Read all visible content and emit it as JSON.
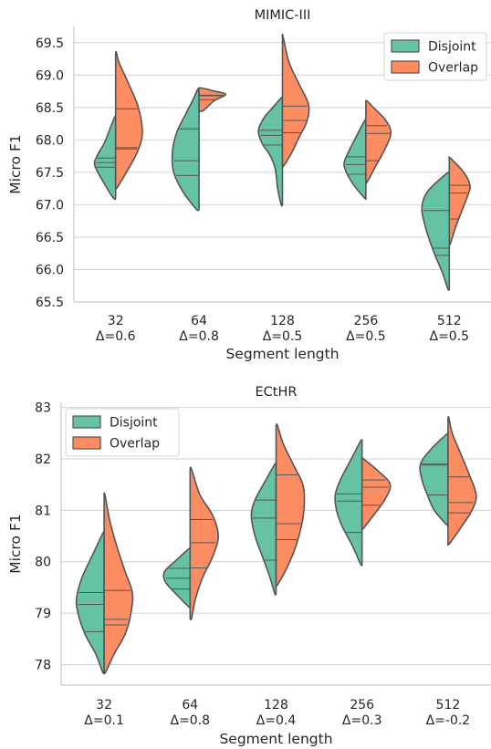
{
  "colors": {
    "disjoint": "#66c2a5",
    "overlap": "#fc8d62",
    "outline": "#555555"
  },
  "chart_data": [
    {
      "type": "violin",
      "title": "MIMIC-III",
      "xlabel": "Segment length",
      "ylabel": "Micro F1",
      "ylim": [
        65.5,
        69.75
      ],
      "yticks": [
        "65.5",
        "66.0",
        "66.5",
        "67.0",
        "67.5",
        "68.0",
        "68.5",
        "69.0",
        "69.5"
      ],
      "categories": [
        "32",
        "64",
        "128",
        "256",
        "512"
      ],
      "category_sublabels": [
        "Δ=0.6",
        "Δ=0.8",
        "Δ=0.5",
        "Δ=0.5",
        "Δ=0.5"
      ],
      "legend": {
        "placement": "top-right",
        "items": [
          "Disjoint",
          "Overlap"
        ]
      },
      "grid": true,
      "series": [
        {
          "name": "Disjoint",
          "violins": [
            {
              "min": 67.1,
              "max": 68.35,
              "w": 0.62,
              "shape": [
                [
                  67.1,
                  0.1
                ],
                [
                  67.3,
                  0.5
                ],
                [
                  67.6,
                  1.0
                ],
                [
                  67.75,
                  0.9
                ],
                [
                  67.95,
                  0.55
                ],
                [
                  68.15,
                  0.3
                ],
                [
                  68.35,
                  0.05
                ]
              ],
              "quartiles": [
                67.58,
                67.65,
                67.72
              ]
            },
            {
              "min": 66.93,
              "max": 68.78,
              "w": 0.8,
              "shape": [
                [
                  66.93,
                  0.1
                ],
                [
                  67.2,
                  0.6
                ],
                [
                  67.5,
                  0.95
                ],
                [
                  67.8,
                  1.0
                ],
                [
                  68.1,
                  0.85
                ],
                [
                  68.4,
                  0.5
                ],
                [
                  68.6,
                  0.25
                ],
                [
                  68.78,
                  0.05
                ]
              ],
              "quartiles": [
                67.45,
                67.68,
                68.17
              ]
            },
            {
              "min": 67.0,
              "max": 68.65,
              "w": 0.72,
              "shape": [
                [
                  67.0,
                  0.05
                ],
                [
                  67.25,
                  0.2
                ],
                [
                  67.55,
                  0.3
                ],
                [
                  67.75,
                  0.5
                ],
                [
                  67.95,
                  0.85
                ],
                [
                  68.15,
                  1.0
                ],
                [
                  68.35,
                  0.75
                ],
                [
                  68.5,
                  0.4
                ],
                [
                  68.65,
                  0.05
                ]
              ],
              "quartiles": [
                67.92,
                68.07,
                68.15
              ]
            },
            {
              "min": 67.1,
              "max": 68.3,
              "w": 0.65,
              "shape": [
                [
                  67.1,
                  0.05
                ],
                [
                  67.3,
                  0.55
                ],
                [
                  67.5,
                  0.9
                ],
                [
                  67.65,
                  1.0
                ],
                [
                  67.85,
                  0.75
                ],
                [
                  68.05,
                  0.45
                ],
                [
                  68.3,
                  0.05
                ]
              ],
              "quartiles": [
                67.47,
                67.62,
                67.74
              ]
            },
            {
              "min": 65.7,
              "max": 67.48,
              "w": 0.82,
              "shape": [
                [
                  65.7,
                  0.05
                ],
                [
                  65.95,
                  0.25
                ],
                [
                  66.2,
                  0.5
                ],
                [
                  66.45,
                  0.72
                ],
                [
                  66.7,
                  0.9
                ],
                [
                  66.95,
                  1.0
                ],
                [
                  67.2,
                  0.8
                ],
                [
                  67.48,
                  0.1
                ]
              ],
              "quartiles": [
                66.22,
                66.33,
                66.91
              ]
            }
          ]
        },
        {
          "name": "Overlap",
          "violins": [
            {
              "min": 67.26,
              "max": 69.35,
              "w": 0.8,
              "shape": [
                [
                  67.26,
                  0.05
                ],
                [
                  67.5,
                  0.4
                ],
                [
                  67.8,
                  0.8
                ],
                [
                  68.1,
                  1.0
                ],
                [
                  68.5,
                  0.85
                ],
                [
                  68.9,
                  0.45
                ],
                [
                  69.2,
                  0.12
                ],
                [
                  69.35,
                  0.03
                ]
              ],
              "quartiles": [
                67.86,
                67.88,
                68.48
              ]
            },
            {
              "min": 68.45,
              "max": 68.8,
              "w": 0.8,
              "shape": [
                [
                  68.45,
                  0.15
                ],
                [
                  68.6,
                  0.55
                ],
                [
                  68.7,
                  1.0
                ],
                [
                  68.75,
                  0.6
                ],
                [
                  68.8,
                  0.1
                ]
              ],
              "quartiles": [
                68.62,
                68.68,
                68.69
              ]
            },
            {
              "min": 67.6,
              "max": 69.6,
              "w": 0.78,
              "shape": [
                [
                  67.6,
                  0.05
                ],
                [
                  67.8,
                  0.35
                ],
                [
                  68.05,
                  0.65
                ],
                [
                  68.3,
                  0.95
                ],
                [
                  68.55,
                  1.0
                ],
                [
                  68.85,
                  0.65
                ],
                [
                  69.2,
                  0.25
                ],
                [
                  69.6,
                  0.02
                ]
              ],
              "quartiles": [
                68.11,
                68.3,
                68.52
              ]
            },
            {
              "min": 67.35,
              "max": 68.6,
              "w": 0.75,
              "shape": [
                [
                  67.35,
                  0.05
                ],
                [
                  67.6,
                  0.4
                ],
                [
                  67.85,
                  0.75
                ],
                [
                  68.1,
                  1.0
                ],
                [
                  68.3,
                  0.8
                ],
                [
                  68.5,
                  0.3
                ],
                [
                  68.6,
                  0.05
                ]
              ],
              "quartiles": [
                67.68,
                68.1,
                68.22
              ]
            },
            {
              "min": 66.4,
              "max": 67.72,
              "w": 0.62,
              "shape": [
                [
                  66.4,
                  0.05
                ],
                [
                  66.65,
                  0.3
                ],
                [
                  66.9,
                  0.6
                ],
                [
                  67.15,
                  0.9
                ],
                [
                  67.3,
                  1.0
                ],
                [
                  67.5,
                  0.7
                ],
                [
                  67.72,
                  0.05
                ]
              ],
              "quartiles": [
                66.78,
                67.18,
                67.3
              ]
            }
          ]
        }
      ]
    },
    {
      "type": "violin",
      "title": "ECtHR",
      "xlabel": "Segment length",
      "ylabel": "Micro F1",
      "ylim": [
        77.6,
        83.1
      ],
      "yticks": [
        "78",
        "79",
        "80",
        "81",
        "82",
        "83"
      ],
      "categories": [
        "32",
        "64",
        "128",
        "256",
        "512"
      ],
      "category_sublabels": [
        "Δ=0.1",
        "Δ=0.8",
        "Δ=0.4",
        "Δ=0.3",
        "Δ=-0.2"
      ],
      "legend": {
        "placement": "top-left",
        "items": [
          "Disjoint",
          "Overlap"
        ]
      },
      "grid": true,
      "series": [
        {
          "name": "Disjoint",
          "violins": [
            {
              "min": 77.85,
              "max": 80.55,
              "w": 0.8,
              "shape": [
                [
                  77.85,
                  0.05
                ],
                [
                  78.2,
                  0.3
                ],
                [
                  78.6,
                  0.7
                ],
                [
                  79.0,
                  0.95
                ],
                [
                  79.3,
                  1.0
                ],
                [
                  79.7,
                  0.8
                ],
                [
                  80.1,
                  0.45
                ],
                [
                  80.55,
                  0.05
                ]
              ],
              "quartiles": [
                78.64,
                79.17,
                79.4
              ]
            },
            {
              "min": 79.12,
              "max": 80.25,
              "w": 0.75,
              "shape": [
                [
                  79.12,
                  0.05
                ],
                [
                  79.35,
                  0.5
                ],
                [
                  79.6,
                  0.95
                ],
                [
                  79.8,
                  1.0
                ],
                [
                  80.0,
                  0.6
                ],
                [
                  80.25,
                  0.05
                ]
              ],
              "quartiles": [
                79.47,
                79.68,
                79.87
              ]
            },
            {
              "min": 79.38,
              "max": 81.9,
              "w": 0.72,
              "shape": [
                [
                  79.38,
                  0.05
                ],
                [
                  79.7,
                  0.25
                ],
                [
                  80.1,
                  0.55
                ],
                [
                  80.5,
                  0.85
                ],
                [
                  80.9,
                  1.0
                ],
                [
                  81.2,
                  0.85
                ],
                [
                  81.6,
                  0.4
                ],
                [
                  81.9,
                  0.05
                ]
              ],
              "quartiles": [
                80.03,
                80.85,
                81.2
              ]
            },
            {
              "min": 79.95,
              "max": 82.35,
              "w": 0.78,
              "shape": [
                [
                  79.95,
                  0.05
                ],
                [
                  80.3,
                  0.35
                ],
                [
                  80.7,
                  0.75
                ],
                [
                  81.0,
                  0.95
                ],
                [
                  81.3,
                  1.0
                ],
                [
                  81.6,
                  0.8
                ],
                [
                  82.0,
                  0.4
                ],
                [
                  82.35,
                  0.05
                ]
              ],
              "quartiles": [
                80.57,
                81.18,
                81.32
              ]
            },
            {
              "min": 80.72,
              "max": 82.48,
              "w": 0.8,
              "shape": [
                [
                  80.72,
                  0.05
                ],
                [
                  81.0,
                  0.5
                ],
                [
                  81.3,
                  0.75
                ],
                [
                  81.6,
                  0.95
                ],
                [
                  81.9,
                  1.0
                ],
                [
                  82.2,
                  0.6
                ],
                [
                  82.48,
                  0.05
                ]
              ],
              "quartiles": [
                81.3,
                81.88,
                81.9
              ]
            }
          ]
        },
        {
          "name": "Overlap",
          "violins": [
            {
              "min": 77.85,
              "max": 81.3,
              "w": 0.82,
              "shape": [
                [
                  77.85,
                  0.05
                ],
                [
                  78.2,
                  0.35
                ],
                [
                  78.6,
                  0.75
                ],
                [
                  79.0,
                  0.95
                ],
                [
                  79.4,
                  1.0
                ],
                [
                  79.8,
                  0.75
                ],
                [
                  80.3,
                  0.45
                ],
                [
                  80.8,
                  0.2
                ],
                [
                  81.3,
                  0.03
                ]
              ],
              "quartiles": [
                78.77,
                78.88,
                79.44
              ]
            },
            {
              "min": 78.9,
              "max": 81.8,
              "w": 0.82,
              "shape": [
                [
                  78.9,
                  0.05
                ],
                [
                  79.3,
                  0.2
                ],
                [
                  79.7,
                  0.45
                ],
                [
                  80.1,
                  0.8
                ],
                [
                  80.5,
                  1.0
                ],
                [
                  80.9,
                  0.8
                ],
                [
                  81.3,
                  0.35
                ],
                [
                  81.8,
                  0.05
                ]
              ],
              "quartiles": [
                79.88,
                80.37,
                80.82
              ]
            },
            {
              "min": 79.55,
              "max": 82.65,
              "w": 0.82,
              "shape": [
                [
                  79.55,
                  0.05
                ],
                [
                  79.9,
                  0.4
                ],
                [
                  80.3,
                  0.7
                ],
                [
                  80.7,
                  0.9
                ],
                [
                  81.1,
                  1.0
                ],
                [
                  81.5,
                  0.95
                ],
                [
                  81.9,
                  0.6
                ],
                [
                  82.3,
                  0.25
                ],
                [
                  82.65,
                  0.05
                ]
              ],
              "quartiles": [
                80.43,
                80.74,
                81.69
              ]
            },
            {
              "min": 80.65,
              "max": 82.0,
              "w": 0.82,
              "shape": [
                [
                  80.65,
                  0.05
                ],
                [
                  80.9,
                  0.4
                ],
                [
                  81.2,
                  0.8
                ],
                [
                  81.5,
                  1.0
                ],
                [
                  81.75,
                  0.6
                ],
                [
                  82.0,
                  0.05
                ]
              ],
              "quartiles": [
                81.1,
                81.45,
                81.59
              ]
            },
            {
              "min": 80.35,
              "max": 82.8,
              "w": 0.82,
              "shape": [
                [
                  80.35,
                  0.05
                ],
                [
                  80.7,
                  0.5
                ],
                [
                  81.0,
                  0.85
                ],
                [
                  81.3,
                  1.0
                ],
                [
                  81.7,
                  0.75
                ],
                [
                  82.1,
                  0.45
                ],
                [
                  82.5,
                  0.15
                ],
                [
                  82.8,
                  0.03
                ]
              ],
              "quartiles": [
                80.95,
                81.15,
                81.65
              ]
            }
          ]
        }
      ]
    }
  ]
}
